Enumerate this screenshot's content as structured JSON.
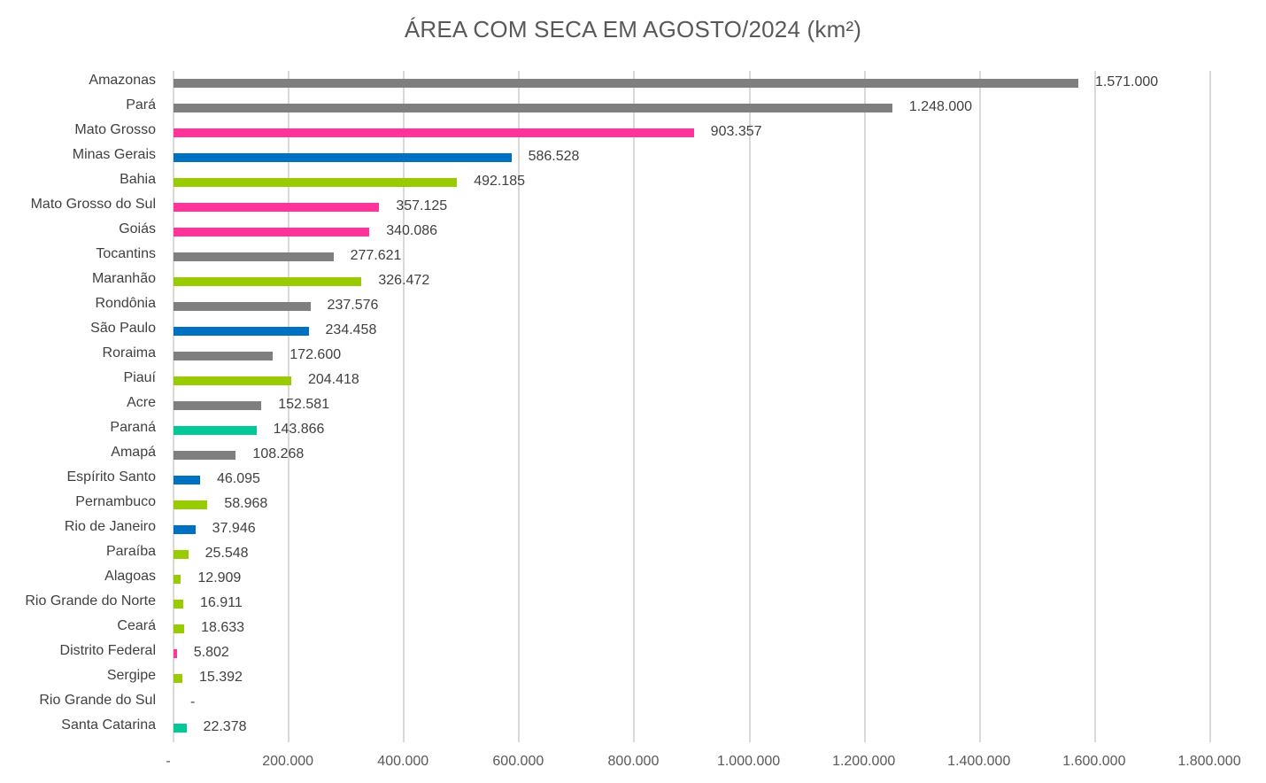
{
  "chart_data": {
    "type": "bar",
    "orientation": "horizontal",
    "title": "ÁREA COM SECA EM AGOSTO/2024 (km²)",
    "xlabel": "",
    "ylabel": "",
    "xlim": [
      0,
      1800000
    ],
    "grid": true,
    "legend": null,
    "x_ticks": [
      "-",
      "200.000",
      "400.000",
      "600.000",
      "800.000",
      "1.000.000",
      "1.200.000",
      "1.400.000",
      "1.600.000",
      "1.800.000"
    ],
    "categories": [
      "Amazonas",
      "Pará",
      "Mato Grosso",
      "Minas Gerais",
      "Bahia",
      "Mato Grosso do Sul",
      "Goiás",
      "Tocantins",
      "Maranhão",
      "Rondônia",
      "São Paulo",
      "Roraima",
      "Piauí",
      "Acre",
      "Paraná",
      "Amapá",
      "Espírito Santo",
      "Pernambuco",
      "Rio de Janeiro",
      "Paraíba",
      "Alagoas",
      "Rio Grande do Norte",
      "Ceará",
      "Distrito Federal",
      "Sergipe",
      "Rio Grande do Sul",
      "Santa Catarina"
    ],
    "values": [
      1571000,
      1248000,
      903357,
      586528,
      492185,
      357125,
      340086,
      277621,
      326472,
      237576,
      234458,
      172600,
      204418,
      152581,
      143866,
      108268,
      46095,
      58968,
      37946,
      25548,
      12909,
      16911,
      18633,
      5802,
      15392,
      0,
      22378
    ],
    "value_labels": [
      "1.571.000",
      "1.248.000",
      "903.357",
      "586.528",
      "492.185",
      "357.125",
      "340.086",
      "277.621",
      "326.472",
      "237.576",
      "234.458",
      "172.600",
      "204.418",
      "152.581",
      "143.866",
      "108.268",
      "46.095",
      "58.968",
      "37.946",
      "25.548",
      "12.909",
      "16.911",
      "18.633",
      "5.802",
      "15.392",
      "-",
      "22.378"
    ],
    "region_colors": {
      "Norte": "#7f7f7f",
      "Centro-Oeste": "#ff3399",
      "Sudeste": "#0070c0",
      "Nordeste": "#99cc00",
      "Sul": "#00c896"
    },
    "bar_colors": [
      "#7f7f7f",
      "#7f7f7f",
      "#ff3399",
      "#0070c0",
      "#99cc00",
      "#ff3399",
      "#ff3399",
      "#7f7f7f",
      "#99cc00",
      "#7f7f7f",
      "#0070c0",
      "#7f7f7f",
      "#99cc00",
      "#7f7f7f",
      "#00c896",
      "#7f7f7f",
      "#0070c0",
      "#99cc00",
      "#0070c0",
      "#99cc00",
      "#99cc00",
      "#99cc00",
      "#99cc00",
      "#ff3399",
      "#99cc00",
      "#99cc00",
      "#00c896"
    ]
  }
}
